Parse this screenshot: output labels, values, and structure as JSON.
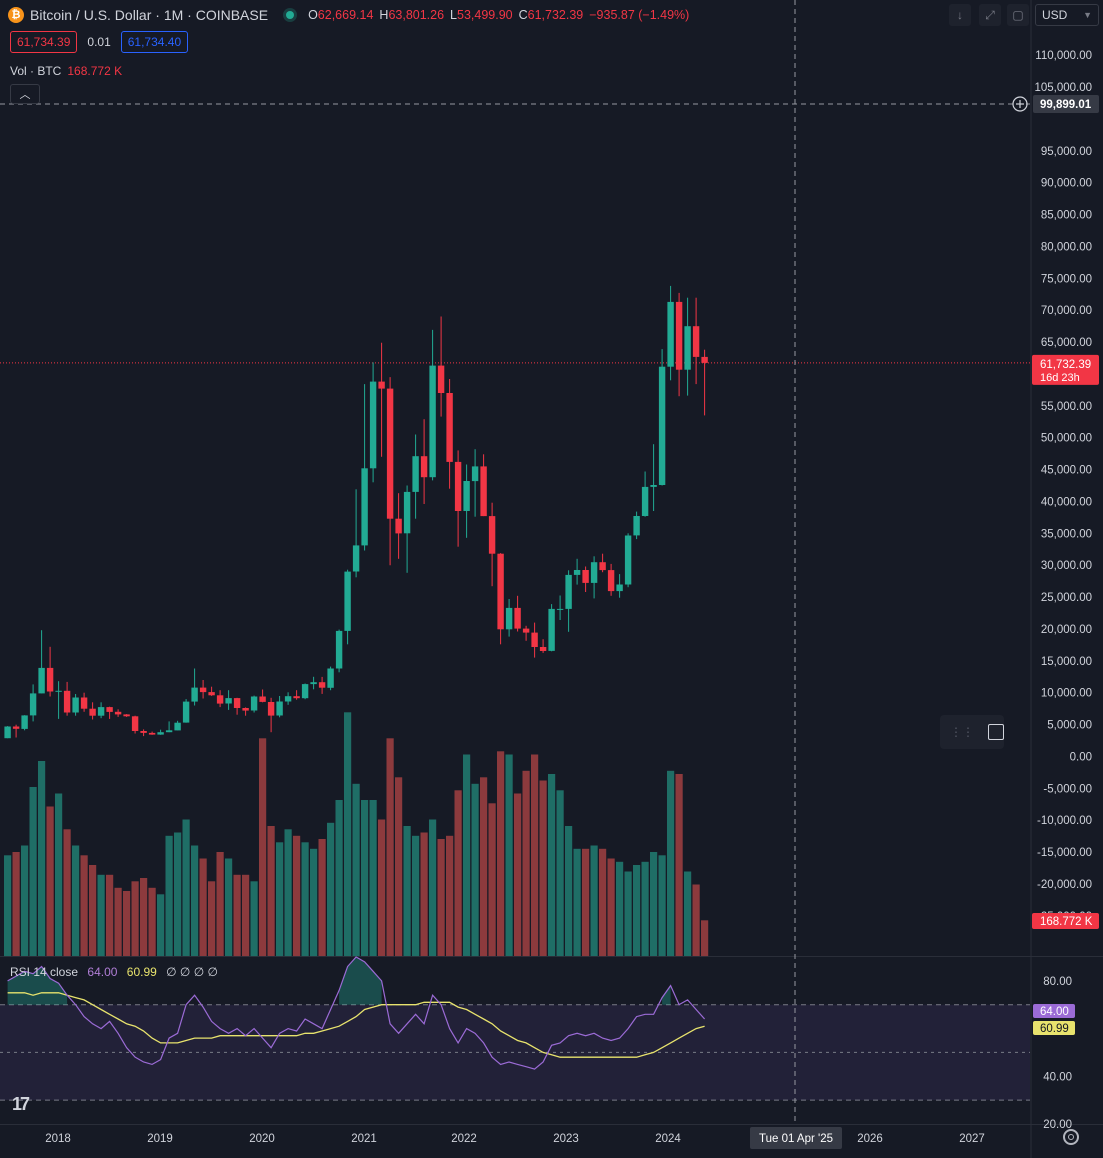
{
  "header": {
    "symbol_title": "Bitcoin / U.S. Dollar · 1M · COINBASE",
    "coin_glyph": "₿",
    "open_label": "O",
    "open_value": "62,669.14",
    "high_label": "H",
    "high_value": "63,801.26",
    "low_label": "L",
    "low_value": "53,499.90",
    "close_label": "C",
    "close_value": "61,732.39",
    "change": "−935.87 (−1.49%)",
    "bid_box": "61,734.39",
    "spread": "0.01",
    "ask_box": "61,734.40",
    "volume_label": "Vol · BTC",
    "volume_value": "168.772 K"
  },
  "toolbar": {
    "currency": "USD",
    "download_icon": "arrow-down-icon",
    "fullscreen_icon": "expand-icon",
    "screenshot_icon": "square-icon"
  },
  "colors": {
    "background": "#161a25",
    "up": "#22ab94",
    "down": "#f23645",
    "vol_up": "#1f6e66",
    "vol_down": "#8c3a3d",
    "rsi_line": "#9b6bd6",
    "rsi_ma": "#e8e36d",
    "grid": "#2a2e39",
    "text": "#d1d4dc"
  },
  "chart_data": [
    {
      "type": "candlestick",
      "title": "",
      "xlabel": "",
      "ylabel": "",
      "interval": "1M",
      "ylim": [
        -28000,
        113000
      ],
      "x_ticks": [
        "2018",
        "2019",
        "2020",
        "2021",
        "2022",
        "2023",
        "2024",
        "Tue 01 Apr '25",
        "2026",
        "2027"
      ],
      "y_ticks": [
        "110,000.00",
        "105,000.00",
        "95,000.00",
        "90,000.00",
        "85,000.00",
        "80,000.00",
        "75,000.00",
        "70,000.00",
        "65,000.00",
        "55,000.00",
        "50,000.00",
        "45,000.00",
        "40,000.00",
        "35,000.00",
        "30,000.00",
        "25,000.00",
        "20,000.00",
        "15,000.00",
        "10,000.00",
        "5,000.00",
        "0.00",
        "-5,000.00",
        "-10,000.00",
        "-15,000.00",
        "-20,000.00",
        "-25,000.00"
      ],
      "crosshair_price": "99,899.01",
      "crosshair_date": "Tue 01 Apr '25",
      "last_price": "61,732.39",
      "countdown": "16d 23h",
      "volume_badge": "168.772 K",
      "start": "2017-08",
      "candles_ohlc": [
        [
          2870,
          4760,
          2870,
          4700
        ],
        [
          4700,
          4980,
          2980,
          4340
        ],
        [
          4340,
          6470,
          4100,
          6450
        ],
        [
          6450,
          11300,
          5500,
          9900
        ],
        [
          9900,
          19800,
          9900,
          13900
        ],
        [
          13900,
          17200,
          9400,
          10200
        ],
        [
          10200,
          11800,
          5900,
          10300
        ],
        [
          10300,
          11700,
          6400,
          6900
        ],
        [
          6900,
          9800,
          6400,
          9250
        ],
        [
          9250,
          10000,
          7000,
          7500
        ],
        [
          7500,
          8500,
          5800,
          6400
        ],
        [
          6400,
          8500,
          6000,
          7750
        ],
        [
          7750,
          7800,
          5900,
          7000
        ],
        [
          7000,
          7400,
          6200,
          6600
        ],
        [
          6600,
          6650,
          6200,
          6300
        ],
        [
          6300,
          6400,
          3600,
          4000
        ],
        [
          4000,
          4250,
          3200,
          3700
        ],
        [
          3700,
          3900,
          3400,
          3430
        ],
        [
          3430,
          4200,
          3400,
          3800
        ],
        [
          3800,
          5500,
          3800,
          4100
        ],
        [
          4100,
          5600,
          4100,
          5300
        ],
        [
          5300,
          9000,
          5300,
          8600
        ],
        [
          8600,
          13800,
          8000,
          10800
        ],
        [
          10800,
          12000,
          9100,
          10100
        ],
        [
          10100,
          10950,
          9500,
          9600
        ],
        [
          9600,
          10400,
          7750,
          8300
        ],
        [
          8300,
          10400,
          7300,
          9150
        ],
        [
          9150,
          9200,
          6550,
          7600
        ],
        [
          7600,
          7700,
          6400,
          7200
        ],
        [
          7200,
          9550,
          6900,
          9400
        ],
        [
          9400,
          10500,
          8500,
          8550
        ],
        [
          8550,
          9200,
          3800,
          6420
        ],
        [
          6420,
          9480,
          6150,
          8620
        ],
        [
          8620,
          10070,
          8100,
          9450
        ],
        [
          9450,
          10400,
          8900,
          9140
        ],
        [
          9140,
          11450,
          8980,
          11350
        ],
        [
          11350,
          12500,
          10540,
          11650
        ],
        [
          11650,
          12480,
          9820,
          10780
        ],
        [
          10780,
          14100,
          10400,
          13800
        ],
        [
          13800,
          19900,
          13200,
          19700
        ],
        [
          19700,
          29300,
          17600,
          29000
        ],
        [
          29000,
          41900,
          28100,
          33100
        ],
        [
          33100,
          58400,
          32300,
          45200
        ],
        [
          45200,
          61800,
          43000,
          58800
        ],
        [
          58800,
          64900,
          47000,
          57700
        ],
        [
          57700,
          59500,
          30000,
          37300
        ],
        [
          37300,
          41300,
          31000,
          35000
        ],
        [
          35000,
          42500,
          28800,
          41500
        ],
        [
          41500,
          50500,
          37300,
          47100
        ],
        [
          47100,
          52900,
          39600,
          43800
        ],
        [
          43800,
          66900,
          43300,
          61300
        ],
        [
          61300,
          69000,
          53300,
          57000
        ],
        [
          57000,
          59200,
          42000,
          46200
        ],
        [
          46200,
          48000,
          32900,
          38500
        ],
        [
          38500,
          45800,
          34300,
          43200
        ],
        [
          43200,
          48200,
          37600,
          45500
        ],
        [
          45500,
          47400,
          37700,
          37700
        ],
        [
          37700,
          39800,
          26700,
          31800
        ],
        [
          31800,
          31900,
          17600,
          19950
        ],
        [
          19950,
          24700,
          18800,
          23300
        ],
        [
          23300,
          25200,
          19600,
          20050
        ],
        [
          20050,
          20500,
          18150,
          19430
        ],
        [
          19430,
          21000,
          15500,
          17170
        ],
        [
          17170,
          18400,
          16250,
          16550
        ],
        [
          16550,
          23900,
          16500,
          23140
        ],
        [
          23140,
          25250,
          21400,
          23150
        ],
        [
          23150,
          29200,
          19550,
          28480
        ],
        [
          28480,
          31000,
          26950,
          29250
        ],
        [
          29250,
          29800,
          25800,
          27220
        ],
        [
          27220,
          31400,
          24800,
          30470
        ],
        [
          30470,
          31800,
          28900,
          29230
        ],
        [
          29230,
          30200,
          25200,
          25930
        ],
        [
          25930,
          28600,
          24900,
          26970
        ],
        [
          26970,
          35000,
          26550,
          34660
        ],
        [
          34660,
          38400,
          34100,
          37710
        ],
        [
          37710,
          44700,
          37600,
          42280
        ],
        [
          42280,
          48980,
          38500,
          42580
        ],
        [
          42580,
          63900,
          42500,
          61130
        ],
        [
          61130,
          73800,
          59000,
          71300
        ],
        [
          71300,
          72700,
          56500,
          60660
        ],
        [
          60660,
          71950,
          56600,
          67490
        ],
        [
          67490,
          71950,
          58400,
          62670
        ],
        [
          62669.14,
          63801.26,
          53499.9,
          61732.39
        ]
      ],
      "volume_btc_k": [
        155,
        160,
        170,
        260,
        300,
        230,
        250,
        195,
        170,
        155,
        140,
        125,
        125,
        105,
        100,
        115,
        120,
        105,
        95,
        185,
        190,
        210,
        170,
        150,
        115,
        160,
        150,
        125,
        125,
        115,
        335,
        200,
        175,
        195,
        185,
        175,
        165,
        180,
        205,
        240,
        375,
        265,
        240,
        240,
        210,
        335,
        275,
        200,
        185,
        190,
        210,
        180,
        185,
        255,
        310,
        265,
        275,
        235,
        315,
        310,
        250,
        285,
        310,
        270,
        280,
        255,
        200,
        165,
        165,
        170,
        165,
        150,
        145,
        130,
        140,
        145,
        160,
        155,
        285,
        280,
        130,
        110,
        55
      ]
    },
    {
      "type": "line",
      "title": "RSI 14 close",
      "legend_rsi": "64.00",
      "legend_ma": "60.99",
      "legend_extra": "∅ ∅ ∅ ∅",
      "ylim": [
        20,
        90
      ],
      "y_ticks": [
        "80.00",
        "40.00",
        "20.00"
      ],
      "levels": [
        70,
        50,
        30
      ],
      "series": [
        {
          "name": "RSI",
          "values": [
            80,
            82,
            84,
            83,
            86,
            81,
            79,
            74,
            70,
            65,
            62,
            60,
            63,
            58,
            52,
            48,
            46,
            45,
            47,
            56,
            58,
            70,
            74,
            69,
            63,
            60,
            58,
            60,
            57,
            60,
            56,
            52,
            58,
            60,
            59,
            64,
            62,
            60,
            68,
            76,
            86,
            90,
            88,
            84,
            80,
            62,
            58,
            62,
            66,
            62,
            74,
            70,
            60,
            54,
            60,
            58,
            54,
            48,
            45,
            46,
            45,
            44,
            43,
            46,
            53,
            54,
            57,
            58,
            57,
            58,
            56,
            55,
            56,
            60,
            65,
            66,
            66,
            73,
            78,
            70,
            72,
            68,
            64
          ]
        },
        {
          "name": "MA",
          "values": [
            75,
            75,
            75,
            74,
            75,
            75,
            75,
            74,
            73,
            72,
            70,
            68,
            66,
            64,
            62,
            61,
            59,
            56,
            54,
            54,
            54,
            55,
            56,
            56,
            56,
            57,
            57,
            57,
            57,
            57,
            57,
            57,
            57,
            57,
            57,
            58,
            58,
            59,
            60,
            61,
            63,
            65,
            68,
            69,
            70,
            70,
            70,
            70,
            70,
            71,
            71,
            71,
            71,
            69,
            68,
            66,
            64,
            62,
            59,
            57,
            55,
            54,
            52,
            50,
            49,
            48,
            48,
            48,
            48,
            48,
            48,
            48,
            48,
            48,
            48,
            49,
            50,
            52,
            54,
            56,
            58,
            60,
            61
          ]
        }
      ]
    }
  ],
  "legend_extra_icons": "empty-set-icon",
  "bottom": {
    "logo_text": "17",
    "settings_icon": "gear-icon"
  }
}
